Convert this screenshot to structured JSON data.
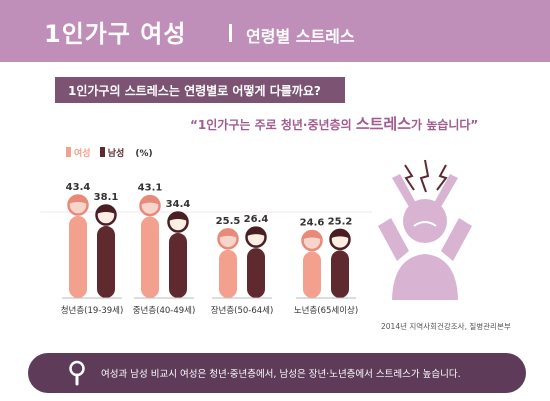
{
  "header": {
    "title": "1인가구 여성",
    "subtitle": "연령별 스트레스"
  },
  "question": "1인가구의 스트레스는 연령별로 어떻게 다를까요?",
  "quote": {
    "open": "“",
    "part1": "1인가구는 주로 청년·중년층의 ",
    "highlight": "스트레스",
    "part2": "가 높습니다",
    "close": "”"
  },
  "legend": {
    "female": "여성",
    "male": "남성",
    "unit": "(%)"
  },
  "colors": {
    "female": "#f4a08e",
    "male": "#5e2a30",
    "header": "#c08fb9",
    "question_bar": "#7c5373",
    "bottom_bar": "#5d3b59",
    "stressed_figure": "#d8b4d2"
  },
  "chart_data": {
    "type": "bar",
    "categories": [
      "청년층(19-39세)",
      "중년층(40-49세)",
      "장년층(50-64세)",
      "노년층(65세이상)"
    ],
    "series": [
      {
        "name": "여성",
        "values": [
          43.4,
          43.1,
          25.5,
          24.6
        ]
      },
      {
        "name": "남성",
        "values": [
          38.1,
          34.4,
          26.4,
          25.2
        ]
      }
    ],
    "ylabel": "(%)",
    "ylim": [
      0,
      45
    ],
    "grid": false
  },
  "source": "2014년 지역사회건강조사, 질병관리본부",
  "conclusion": "여성과 남성 비교시 여성은 청년·중년층에서, 남성은 장년·노년층에서 스트레스가 높습니다.",
  "icons": [
    "magnifier-icon",
    "stressed-person-icon"
  ]
}
